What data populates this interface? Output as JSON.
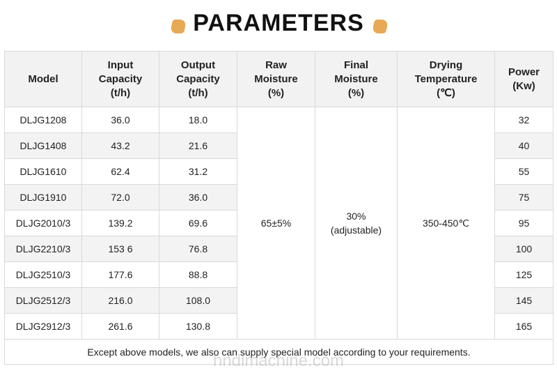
{
  "header": {
    "title": "PARAMETERS"
  },
  "table": {
    "columns": [
      "Model",
      "Input\nCapacity\n(t/h)",
      "Output\nCapacity\n(t/h)",
      "Raw\nMoisture\n(%)",
      "Final\nMoisture\n(%)",
      "Drying\nTemperature\n(℃)",
      "Power\n(Kw)"
    ],
    "rows": [
      [
        "DLJG1208",
        "36.0",
        "18.0",
        "32"
      ],
      [
        "DLJG1408",
        "43.2",
        "21.6",
        "40"
      ],
      [
        "DLJG1610",
        "62.4",
        "31.2",
        "55"
      ],
      [
        "DLJG1910",
        "72.0",
        "36.0",
        "75"
      ],
      [
        "DLJG2010/3",
        "139.2",
        "69.6",
        "95"
      ],
      [
        "DLJG2210/3",
        "153 6",
        "76.8",
        "100"
      ],
      [
        "DLJG2510/3",
        "177.6",
        "88.8",
        "125"
      ],
      [
        "DLJG2512/3",
        "216.0",
        "108.0",
        "145"
      ],
      [
        "DLJG2912/3",
        "261.6",
        "130.8",
        "165"
      ]
    ],
    "shared": {
      "raw_moisture": "65±5%",
      "final_moisture": "30%\n(adjustable)",
      "drying_temperature": "350-450℃"
    },
    "note": "Except above models, we also can supply special model according to your requirements."
  },
  "watermark": "hndlmachine.com"
}
